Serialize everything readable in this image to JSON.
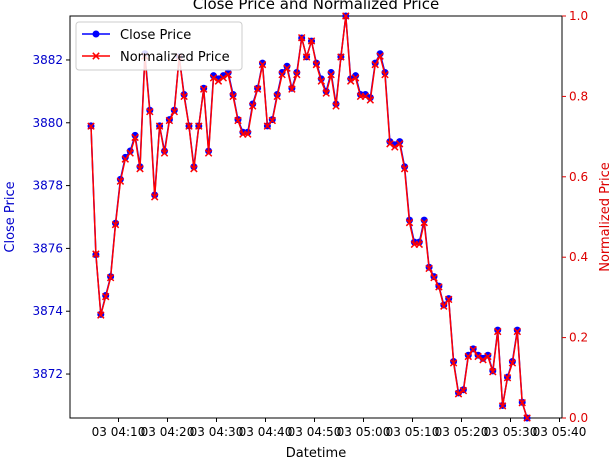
{
  "chart_data": {
    "type": "line",
    "title": "Close Price and Normalized Price",
    "xlabel": "Datetime",
    "ylabel_left": "Close Price",
    "ylabel_right": "Normalized Price",
    "x_tick_labels": [
      "03 04:10",
      "03 04:20",
      "03 04:30",
      "03 04:40",
      "03 04:50",
      "03 05:00",
      "03 05:10",
      "03 05:20",
      "03 05:30",
      "03 05:40"
    ],
    "x_start_label": "03 04:05",
    "x_step_minutes": 1,
    "ylim_left": [
      3870.6,
      3883.4
    ],
    "yticks_left": [
      3872,
      3874,
      3876,
      3878,
      3880,
      3882
    ],
    "ylim_right": [
      0.0,
      1.0
    ],
    "yticks_right": [
      0.0,
      0.2,
      0.4,
      0.6,
      0.8,
      1.0
    ],
    "grid": false,
    "legend_position": "upper-left",
    "colors": {
      "left_axis": "#0000cc",
      "right_axis": "#dd0000",
      "close_line": "#0000ff",
      "normalized_line": "#ff0000"
    },
    "series": [
      {
        "name": "Close Price",
        "axis": "left",
        "color": "#0000ff",
        "marker": "circle",
        "values": [
          3879.9,
          3875.8,
          3873.9,
          3874.5,
          3875.1,
          3876.8,
          3878.2,
          3878.9,
          3879.1,
          3879.6,
          3878.6,
          3882.2,
          3880.4,
          3877.7,
          3879.9,
          3879.1,
          3880.1,
          3880.4,
          3882.1,
          3880.9,
          3879.9,
          3878.6,
          3879.9,
          3881.1,
          3879.1,
          3881.5,
          3881.4,
          3881.5,
          3881.6,
          3880.9,
          3880.1,
          3879.7,
          3879.7,
          3880.6,
          3881.1,
          3881.9,
          3879.9,
          3880.1,
          3880.9,
          3881.6,
          3881.8,
          3881.1,
          3881.6,
          3882.7,
          3882.1,
          3882.6,
          3881.9,
          3881.4,
          3881.0,
          3881.6,
          3880.6,
          3882.1,
          3883.4,
          3881.4,
          3881.5,
          3880.9,
          3880.9,
          3880.8,
          3881.9,
          3882.2,
          3881.6,
          3879.4,
          3879.3,
          3879.4,
          3878.6,
          3876.9,
          3876.2,
          3876.2,
          3876.9,
          3875.4,
          3875.1,
          3874.8,
          3874.2,
          3874.4,
          3872.4,
          3871.4,
          3871.5,
          3872.6,
          3872.8,
          3872.6,
          3872.5,
          3872.6,
          3872.1,
          3873.4,
          3871.0,
          3871.9,
          3872.4,
          3873.4,
          3871.1,
          3870.6
        ]
      },
      {
        "name": "Normalized Price",
        "axis": "right",
        "color": "#ff0000",
        "marker": "x",
        "values": [
          0.726,
          0.408,
          0.256,
          0.302,
          0.349,
          0.481,
          0.589,
          0.644,
          0.659,
          0.698,
          0.62,
          0.9,
          0.762,
          0.55,
          0.726,
          0.659,
          0.74,
          0.762,
          0.898,
          0.8,
          0.726,
          0.62,
          0.726,
          0.818,
          0.659,
          0.846,
          0.838,
          0.846,
          0.854,
          0.8,
          0.74,
          0.706,
          0.706,
          0.776,
          0.818,
          0.879,
          0.726,
          0.74,
          0.8,
          0.854,
          0.87,
          0.818,
          0.854,
          0.946,
          0.898,
          0.938,
          0.879,
          0.838,
          0.808,
          0.854,
          0.776,
          0.898,
          1.0,
          0.838,
          0.846,
          0.8,
          0.8,
          0.791,
          0.879,
          0.9,
          0.854,
          0.682,
          0.674,
          0.682,
          0.62,
          0.486,
          0.432,
          0.432,
          0.486,
          0.372,
          0.349,
          0.326,
          0.278,
          0.295,
          0.137,
          0.06,
          0.068,
          0.153,
          0.17,
          0.153,
          0.145,
          0.153,
          0.115,
          0.215,
          0.03,
          0.1,
          0.137,
          0.215,
          0.038,
          0.0
        ]
      }
    ]
  }
}
